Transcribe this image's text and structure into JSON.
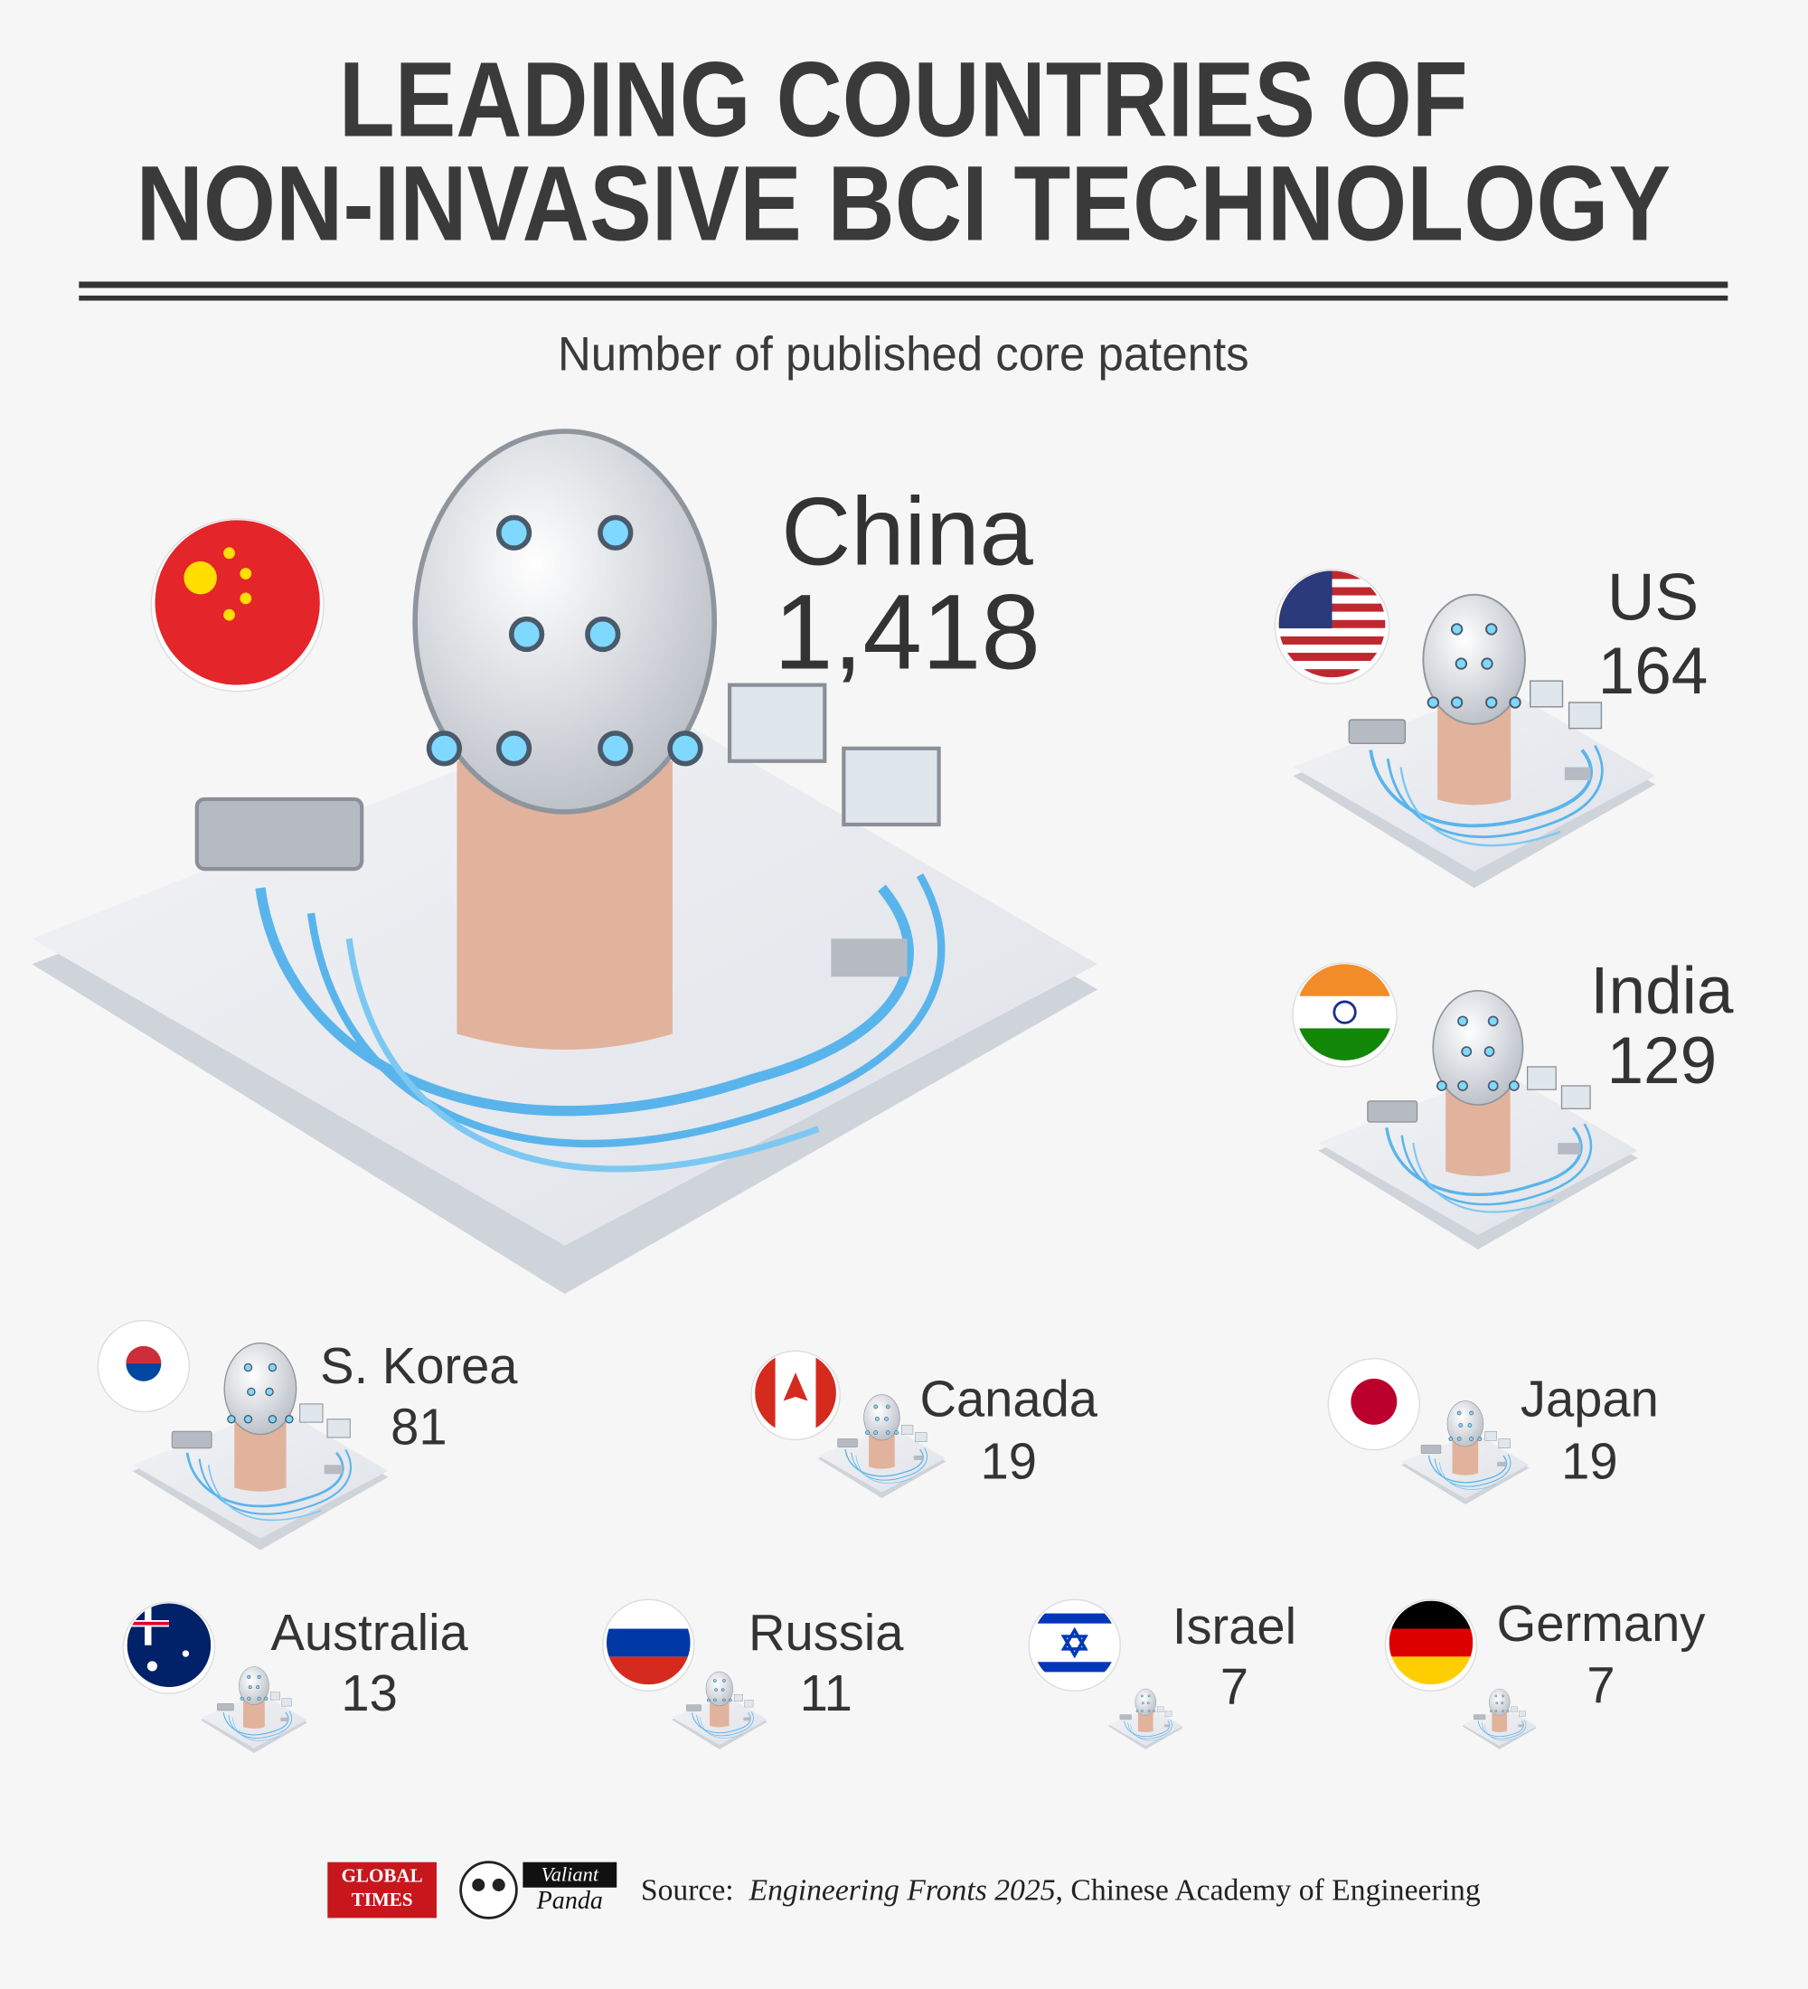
{
  "header": {
    "title_line1": "LEADING COUNTRIES OF",
    "title_line2": "NON-INVASIVE BCI TECHNOLOGY",
    "subtitle": "Number of published core patents"
  },
  "countries": [
    {
      "name": "China",
      "patents": "1,418"
    },
    {
      "name": "US",
      "patents": "164"
    },
    {
      "name": "India",
      "patents": "129"
    },
    {
      "name": "S. Korea",
      "patents": "81"
    },
    {
      "name": "Canada",
      "patents": "19"
    },
    {
      "name": "Japan",
      "patents": "19"
    },
    {
      "name": "Australia",
      "patents": "13"
    },
    {
      "name": "Russia",
      "patents": "11"
    },
    {
      "name": "Israel",
      "patents": "7"
    },
    {
      "name": "Germany",
      "patents": "7"
    }
  ],
  "footer": {
    "logo1_line1": "GLOBAL",
    "logo1_line2": "TIMES",
    "logo2_line1": "Valiant",
    "logo2_line2": "Panda",
    "source_prefix": "Source:",
    "source_title": "Engineering Fronts 2025",
    "source_suffix": ", Chinese Academy of Engineering"
  }
}
